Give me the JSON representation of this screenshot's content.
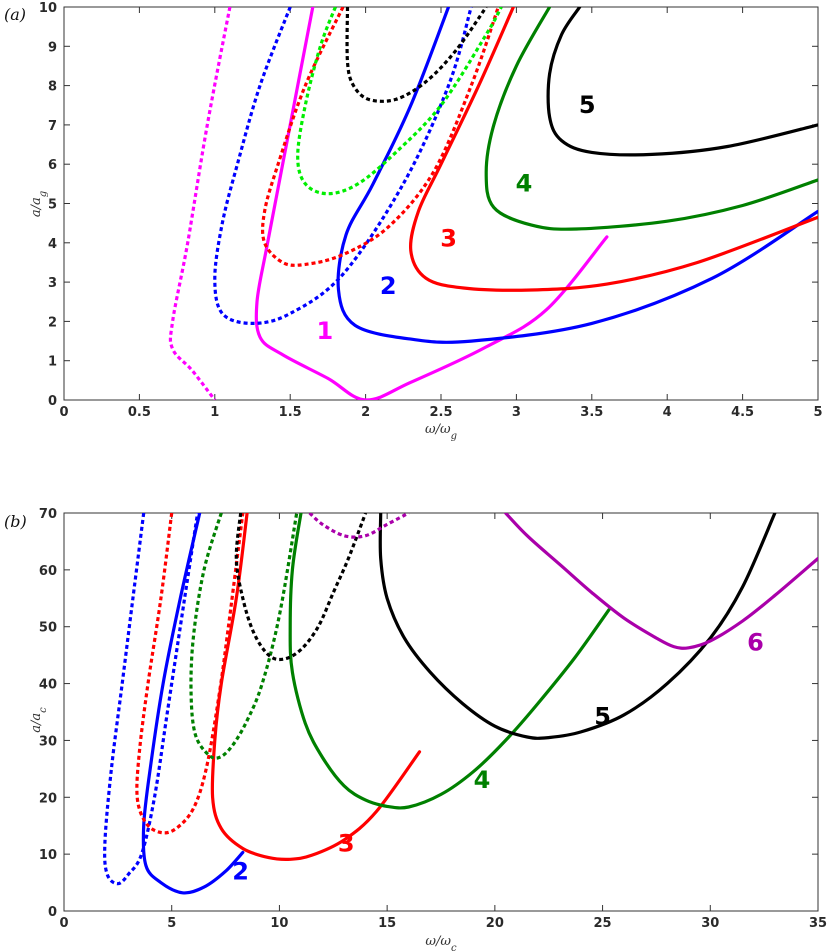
{
  "chart_data": [
    {
      "type": "line",
      "panel_label": "(a)",
      "xlabel": "ω/ω_g",
      "ylabel": "a/a_g",
      "xlim": [
        0,
        5
      ],
      "ylim": [
        0,
        10
      ],
      "xticks": [
        0,
        0.5,
        1,
        1.5,
        2,
        2.5,
        3,
        3.5,
        4,
        4.5,
        5
      ],
      "yticks": [
        0,
        1,
        2,
        3,
        4,
        5,
        6,
        7,
        8,
        9,
        10
      ],
      "grid": false,
      "series": [
        {
          "color": "#ff00ff",
          "style": "solid",
          "points": [
            [
              1.65,
              10
            ],
            [
              1.5,
              7
            ],
            [
              1.35,
              4
            ],
            [
              1.28,
              2.5
            ],
            [
              1.3,
              1.6
            ],
            [
              1.45,
              1.15
            ],
            [
              1.75,
              0.55
            ],
            [
              2,
              0
            ],
            [
              2.3,
              0.45
            ],
            [
              2.8,
              1.35
            ],
            [
              3.2,
              2.3
            ],
            [
              3.6,
              4.15
            ]
          ]
        },
        {
          "color": "#ff00ff",
          "style": "dotted",
          "points": [
            [
              1.1,
              10
            ],
            [
              0.95,
              7
            ],
            [
              0.82,
              4
            ],
            [
              0.72,
              2
            ],
            [
              0.72,
              1.3
            ],
            [
              0.85,
              0.75
            ],
            [
              1,
              0
            ]
          ]
        },
        {
          "color": "#0000ff",
          "style": "solid",
          "points": [
            [
              2.55,
              10
            ],
            [
              2.3,
              7.5
            ],
            [
              2.05,
              5.5
            ],
            [
              1.87,
              4.2
            ],
            [
              1.82,
              2.8
            ],
            [
              1.93,
              1.9
            ],
            [
              2.3,
              1.55
            ],
            [
              2.7,
              1.5
            ],
            [
              3.5,
              1.95
            ],
            [
              4.3,
              3.1
            ],
            [
              5,
              4.8
            ]
          ]
        },
        {
          "color": "#0000ff",
          "style": "dotted",
          "points": [
            [
              1.5,
              10
            ],
            [
              1.3,
              8
            ],
            [
              1.15,
              6
            ],
            [
              1.05,
              4.5
            ],
            [
              1.0,
              3.1
            ],
            [
              1.05,
              2.2
            ],
            [
              1.25,
              1.95
            ],
            [
              1.5,
              2.2
            ],
            [
              1.85,
              3.2
            ],
            [
              2.25,
              5.5
            ],
            [
              2.55,
              8
            ],
            [
              2.7,
              10
            ]
          ]
        },
        {
          "color": "#ff0000",
          "style": "solid",
          "points": [
            [
              2.98,
              10
            ],
            [
              2.75,
              8
            ],
            [
              2.5,
              6
            ],
            [
              2.35,
              4.8
            ],
            [
              2.3,
              3.8
            ],
            [
              2.4,
              3.1
            ],
            [
              2.65,
              2.85
            ],
            [
              3.1,
              2.8
            ],
            [
              3.6,
              2.95
            ],
            [
              4.2,
              3.5
            ],
            [
              5,
              4.65
            ]
          ]
        },
        {
          "color": "#ff0000",
          "style": "dotted",
          "points": [
            [
              1.85,
              10
            ],
            [
              1.6,
              8
            ],
            [
              1.42,
              6
            ],
            [
              1.33,
              4.8
            ],
            [
              1.33,
              4.0
            ],
            [
              1.45,
              3.5
            ],
            [
              1.6,
              3.45
            ],
            [
              1.85,
              3.7
            ],
            [
              2.15,
              4.4
            ],
            [
              2.45,
              5.8
            ],
            [
              2.7,
              8
            ],
            [
              2.88,
              10
            ]
          ]
        },
        {
          "color": "#008000",
          "style": "solid",
          "points": [
            [
              3.22,
              10
            ],
            [
              3.0,
              8.5
            ],
            [
              2.85,
              7
            ],
            [
              2.8,
              5.8
            ],
            [
              2.85,
              4.9
            ],
            [
              3.1,
              4.45
            ],
            [
              3.4,
              4.35
            ],
            [
              4.0,
              4.55
            ],
            [
              4.5,
              4.95
            ],
            [
              5,
              5.6
            ]
          ]
        },
        {
          "color": "#00ee00",
          "style": "dotted",
          "points": [
            [
              1.8,
              10
            ],
            [
              1.7,
              9
            ],
            [
              1.6,
              7.5
            ],
            [
              1.55,
              6.2
            ],
            [
              1.6,
              5.5
            ],
            [
              1.75,
              5.25
            ],
            [
              1.95,
              5.5
            ],
            [
              2.2,
              6.3
            ],
            [
              2.5,
              7.5
            ],
            [
              2.8,
              9.3
            ],
            [
              2.9,
              10
            ]
          ]
        },
        {
          "color": "#000000",
          "style": "solid",
          "points": [
            [
              3.42,
              10
            ],
            [
              3.3,
              9.3
            ],
            [
              3.22,
              8.3
            ],
            [
              3.22,
              7.2
            ],
            [
              3.3,
              6.6
            ],
            [
              3.5,
              6.3
            ],
            [
              3.9,
              6.25
            ],
            [
              4.4,
              6.45
            ],
            [
              5,
              7.0
            ]
          ]
        },
        {
          "color": "#000000",
          "style": "dotted",
          "points": [
            [
              1.88,
              10
            ],
            [
              1.88,
              8.6
            ],
            [
              1.92,
              8.0
            ],
            [
              2.02,
              7.65
            ],
            [
              2.2,
              7.65
            ],
            [
              2.4,
              8.1
            ],
            [
              2.6,
              8.9
            ],
            [
              2.8,
              10
            ]
          ]
        }
      ],
      "curve_labels": [
        {
          "text": "1",
          "color": "#ff00ff",
          "x": 1.73,
          "y": 1.55
        },
        {
          "text": "2",
          "color": "#0000ff",
          "x": 2.15,
          "y": 2.7
        },
        {
          "text": "3",
          "color": "#ff0000",
          "x": 2.55,
          "y": 3.9
        },
        {
          "text": "4",
          "color": "#008000",
          "x": 3.05,
          "y": 5.3
        },
        {
          "text": "5",
          "color": "#000000",
          "x": 3.47,
          "y": 7.3
        }
      ]
    },
    {
      "type": "line",
      "panel_label": "(b)",
      "xlabel": "ω/ω_c",
      "ylabel": "a/a_c",
      "xlim": [
        0,
        35
      ],
      "ylim": [
        0,
        70
      ],
      "xticks": [
        0,
        5,
        10,
        15,
        20,
        25,
        30,
        35
      ],
      "yticks": [
        0,
        10,
        20,
        30,
        40,
        50,
        60,
        70
      ],
      "grid": false,
      "series": [
        {
          "color": "#0000ff",
          "style": "solid",
          "points": [
            [
              6.3,
              70
            ],
            [
              5.4,
              55
            ],
            [
              4.6,
              40
            ],
            [
              4.0,
              25
            ],
            [
              3.7,
              15
            ],
            [
              3.8,
              8
            ],
            [
              4.5,
              5
            ],
            [
              5.5,
              3.2
            ],
            [
              6.5,
              4.2
            ],
            [
              7.5,
              7
            ],
            [
              8.3,
              10.3
            ]
          ]
        },
        {
          "color": "#0000ff",
          "style": "dotted",
          "points": [
            [
              3.7,
              70
            ],
            [
              3.2,
              55
            ],
            [
              2.7,
              40
            ],
            [
              2.2,
              25
            ],
            [
              1.9,
              12
            ],
            [
              2.0,
              6.5
            ],
            [
              2.5,
              4.8
            ],
            [
              3.0,
              6.5
            ],
            [
              3.6,
              10
            ],
            [
              4.2,
              20
            ],
            [
              4.8,
              35
            ],
            [
              5.6,
              55
            ],
            [
              6.2,
              70
            ]
          ]
        },
        {
          "color": "#ff0000",
          "style": "solid",
          "points": [
            [
              8.5,
              70
            ],
            [
              8.0,
              55
            ],
            [
              7.3,
              40
            ],
            [
              7.0,
              30
            ],
            [
              6.9,
              20
            ],
            [
              7.3,
              14.5
            ],
            [
              8.3,
              11
            ],
            [
              9.5,
              9.4
            ],
            [
              10.5,
              9.1
            ],
            [
              11.5,
              9.8
            ],
            [
              13,
              12.5
            ],
            [
              14.5,
              17.5
            ],
            [
              16.5,
              28
            ]
          ]
        },
        {
          "color": "#ff0000",
          "style": "dotted",
          "points": [
            [
              5.0,
              70
            ],
            [
              4.5,
              55
            ],
            [
              3.9,
              40
            ],
            [
              3.5,
              28
            ],
            [
              3.4,
              20
            ],
            [
              3.8,
              15.5
            ],
            [
              4.5,
              13.8
            ],
            [
              5.2,
              14.5
            ],
            [
              6.0,
              18
            ],
            [
              6.6,
              25
            ],
            [
              7.2,
              38
            ],
            [
              7.7,
              52
            ],
            [
              8.3,
              70
            ]
          ]
        },
        {
          "color": "#008000",
          "style": "solid",
          "points": [
            [
              11.0,
              70
            ],
            [
              10.6,
              60
            ],
            [
              10.5,
              50
            ],
            [
              10.6,
              42
            ],
            [
              11.2,
              33
            ],
            [
              12.0,
              27
            ],
            [
              13.0,
              22
            ],
            [
              14.0,
              19.5
            ],
            [
              15.0,
              18.4
            ],
            [
              16.0,
              18.3
            ],
            [
              17.5,
              20.5
            ],
            [
              19,
              24.5
            ],
            [
              20.5,
              30
            ],
            [
              22,
              36.5
            ],
            [
              23.7,
              44.5
            ],
            [
              25.3,
              53
            ]
          ]
        },
        {
          "color": "#008000",
          "style": "dotted",
          "points": [
            [
              7.3,
              70
            ],
            [
              6.5,
              60
            ],
            [
              6.0,
              48
            ],
            [
              5.9,
              38
            ],
            [
              6.1,
              31
            ],
            [
              6.7,
              27.5
            ],
            [
              7.2,
              27
            ],
            [
              7.8,
              29
            ],
            [
              8.5,
              33.5
            ],
            [
              9.2,
              40
            ],
            [
              10.0,
              52
            ],
            [
              10.8,
              70
            ]
          ]
        },
        {
          "color": "#000000",
          "style": "solid",
          "points": [
            [
              14.7,
              70
            ],
            [
              14.7,
              62
            ],
            [
              15.0,
              55
            ],
            [
              15.8,
              48
            ],
            [
              17.0,
              42
            ],
            [
              18.5,
              36.5
            ],
            [
              20,
              32.5
            ],
            [
              21.5,
              30.6
            ],
            [
              22.5,
              30.5
            ],
            [
              24,
              31.5
            ],
            [
              26,
              34.5
            ],
            [
              28,
              40
            ],
            [
              30,
              48
            ],
            [
              31.5,
              57
            ],
            [
              33,
              70
            ]
          ]
        },
        {
          "color": "#000000",
          "style": "dotted",
          "points": [
            [
              8.2,
              70
            ],
            [
              8.0,
              62
            ],
            [
              8.3,
              55
            ],
            [
              8.8,
              49
            ],
            [
              9.5,
              45
            ],
            [
              10.2,
              44.3
            ],
            [
              11.0,
              46
            ],
            [
              11.8,
              50
            ],
            [
              12.5,
              56
            ],
            [
              13.2,
              62
            ],
            [
              14.0,
              70
            ]
          ]
        },
        {
          "color": "#aa00aa",
          "style": "solid",
          "points": [
            [
              20.5,
              70
            ],
            [
              21.5,
              66
            ],
            [
              23,
              61
            ],
            [
              24.5,
              56
            ],
            [
              26,
              51.5
            ],
            [
              27.5,
              48
            ],
            [
              28.3,
              46.5
            ],
            [
              29,
              46.3
            ],
            [
              30,
              47.5
            ],
            [
              31.5,
              51
            ],
            [
              33,
              55.5
            ],
            [
              35,
              62
            ]
          ]
        },
        {
          "color": "#aa00aa",
          "style": "dotted",
          "points": [
            [
              11.4,
              70
            ],
            [
              12,
              68
            ],
            [
              13,
              66
            ],
            [
              14,
              66
            ],
            [
              15,
              68
            ],
            [
              16,
              70
            ]
          ]
        }
      ],
      "curve_labels": [
        {
          "text": "2",
          "color": "#0000ff",
          "x": 8.2,
          "y": 5.5
        },
        {
          "text": "3",
          "color": "#ff0000",
          "x": 13.1,
          "y": 10.5
        },
        {
          "text": "4",
          "color": "#008000",
          "x": 19.4,
          "y": 21.6
        },
        {
          "text": "5",
          "color": "#000000",
          "x": 25.0,
          "y": 32.8
        },
        {
          "text": "6",
          "color": "#aa00aa",
          "x": 32.1,
          "y": 45.8
        }
      ]
    }
  ]
}
